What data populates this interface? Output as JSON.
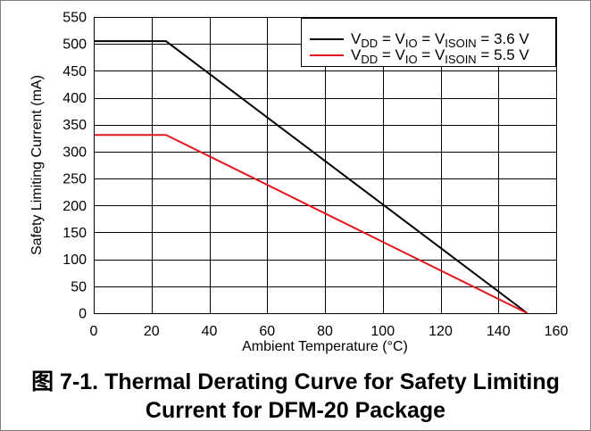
{
  "chart_data": {
    "type": "line",
    "title": "图 7-1. Thermal Derating Curve for Safety Limiting Current for DFM-20 Package",
    "xlabel": "Ambient Temperature (°C)",
    "ylabel": "Safety Limiting Current (mA)",
    "xlim": [
      0,
      160
    ],
    "ylim": [
      0,
      550
    ],
    "xticks": [
      0,
      20,
      40,
      60,
      80,
      100,
      120,
      140,
      160
    ],
    "yticks": [
      0,
      50,
      100,
      150,
      200,
      250,
      300,
      350,
      400,
      450,
      500,
      550
    ],
    "grid": true,
    "legend_position": "top-right",
    "series": [
      {
        "name_parts": [
          {
            "text": "V"
          },
          {
            "sub": "DD"
          },
          {
            "text": " = V"
          },
          {
            "sub": "IO"
          },
          {
            "text": " = V"
          },
          {
            "sub": "ISOIN"
          },
          {
            "text": " = 3.6 V"
          }
        ],
        "color": "#000000",
        "x": [
          0,
          25,
          150
        ],
        "y": [
          505,
          505,
          0
        ]
      },
      {
        "name_parts": [
          {
            "text": "V"
          },
          {
            "sub": "DD"
          },
          {
            "text": " = V"
          },
          {
            "sub": "IO"
          },
          {
            "text": " = V"
          },
          {
            "sub": "ISOIN"
          },
          {
            "text": " = 5.5 V"
          }
        ],
        "color": "#e3161e",
        "x": [
          0,
          25,
          150
        ],
        "y": [
          331,
          331,
          0
        ]
      }
    ]
  },
  "colors": {
    "grid": "#000000",
    "frame": "#000000"
  }
}
